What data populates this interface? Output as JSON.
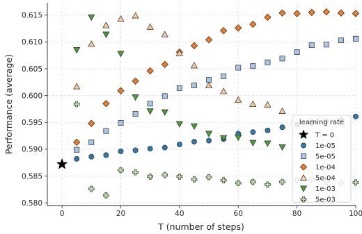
{
  "chart_data": {
    "type": "scatter",
    "xlabel": "T (number of steps)",
    "ylabel": "Performance (average)",
    "xlim": [
      -5,
      100
    ],
    "ylim": [
      0.5795,
      0.6173
    ],
    "xticks": [
      "0",
      "20",
      "40",
      "60",
      "80",
      "100"
    ],
    "yticks": [
      "0.580",
      "0.585",
      "0.590",
      "0.595",
      "0.600",
      "0.605",
      "0.610",
      "0.615"
    ],
    "grid": true,
    "legend": {
      "title": "learning rate",
      "placement": "lower-right"
    },
    "baseline": {
      "name": "T = 0",
      "x": 0,
      "y": 0.5872,
      "color": "#000000",
      "marker": "star"
    },
    "series": [
      {
        "name": "1e-05",
        "color": "#2f79ad",
        "marker": "circle",
        "x": [
          5,
          10,
          15,
          20,
          25,
          30,
          35,
          40,
          45,
          50,
          55,
          60,
          65,
          70,
          75,
          80,
          85,
          90,
          95,
          100
        ],
        "y": [
          0.5882,
          0.5886,
          0.5889,
          0.5896,
          0.5898,
          0.5901,
          0.5903,
          0.5909,
          0.5914,
          0.5916,
          0.5919,
          0.5929,
          0.5932,
          0.5935,
          0.5941,
          0.5946,
          0.5949,
          0.5952,
          0.5955,
          0.5961
        ]
      },
      {
        "name": "5e-05",
        "color": "#a8c4e6",
        "marker": "square",
        "x": [
          5,
          10,
          15,
          20,
          25,
          30,
          35,
          40,
          45,
          50,
          55,
          60,
          65,
          70,
          75,
          80,
          85,
          90,
          95,
          100
        ],
        "y": [
          0.5899,
          0.5913,
          0.5934,
          0.5949,
          0.5966,
          0.5985,
          0.5999,
          0.6014,
          0.6019,
          0.6029,
          0.6036,
          0.6052,
          0.6055,
          0.6062,
          0.6069,
          0.6081,
          0.6094,
          0.6095,
          0.6103,
          0.6106
        ]
      },
      {
        "name": "1e-04",
        "color": "#ec7c26",
        "marker": "diamond",
        "x": [
          5,
          10,
          15,
          20,
          25,
          30,
          35,
          40,
          45,
          50,
          55,
          60,
          65,
          70,
          75,
          80,
          85,
          90,
          95,
          100
        ],
        "y": [
          0.5913,
          0.5948,
          0.5985,
          0.6009,
          0.6027,
          0.6046,
          0.6058,
          0.6081,
          0.6093,
          0.6104,
          0.6121,
          0.6126,
          0.6133,
          0.6146,
          0.6154,
          0.6153,
          0.6155,
          0.6156,
          0.6154,
          0.6153
        ]
      },
      {
        "name": "5e-04",
        "color": "#f6c79c",
        "marker": "triangle-up",
        "x": [
          5,
          10,
          15,
          20,
          25,
          30,
          35,
          40,
          45,
          50,
          55,
          60,
          65,
          70,
          75
        ],
        "y": [
          0.6017,
          0.6096,
          0.6131,
          0.6143,
          0.6149,
          0.6128,
          0.6114,
          0.6079,
          0.6056,
          0.6019,
          0.6008,
          0.5992,
          0.5984,
          0.5983,
          0.5971
        ]
      },
      {
        "name": "1e-03",
        "color": "#4a9c38",
        "marker": "triangle-down",
        "x": [
          5,
          10,
          15,
          20,
          25,
          30,
          35,
          40,
          45,
          50,
          55,
          60,
          65,
          70,
          75
        ],
        "y": [
          0.6085,
          0.6146,
          0.6114,
          0.6078,
          0.5997,
          0.5971,
          0.5969,
          0.5947,
          0.5943,
          0.5929,
          0.5921,
          0.5922,
          0.5912,
          0.5911,
          0.5904
        ]
      },
      {
        "name": "5e-03",
        "color": "#b8dca6",
        "marker": "plus",
        "x": [
          5,
          10,
          15,
          20,
          25,
          30,
          35,
          40,
          45,
          50,
          55,
          60,
          65,
          70,
          75,
          80,
          85,
          90,
          95,
          100
        ],
        "y": [
          0.5984,
          0.5826,
          0.5814,
          0.5861,
          0.5857,
          0.5849,
          0.5852,
          0.5849,
          0.5844,
          0.5848,
          0.5842,
          0.5837,
          0.5839,
          0.5834,
          0.5839,
          0.5843,
          0.5844,
          0.5839,
          0.5837,
          0.5838
        ]
      }
    ]
  }
}
